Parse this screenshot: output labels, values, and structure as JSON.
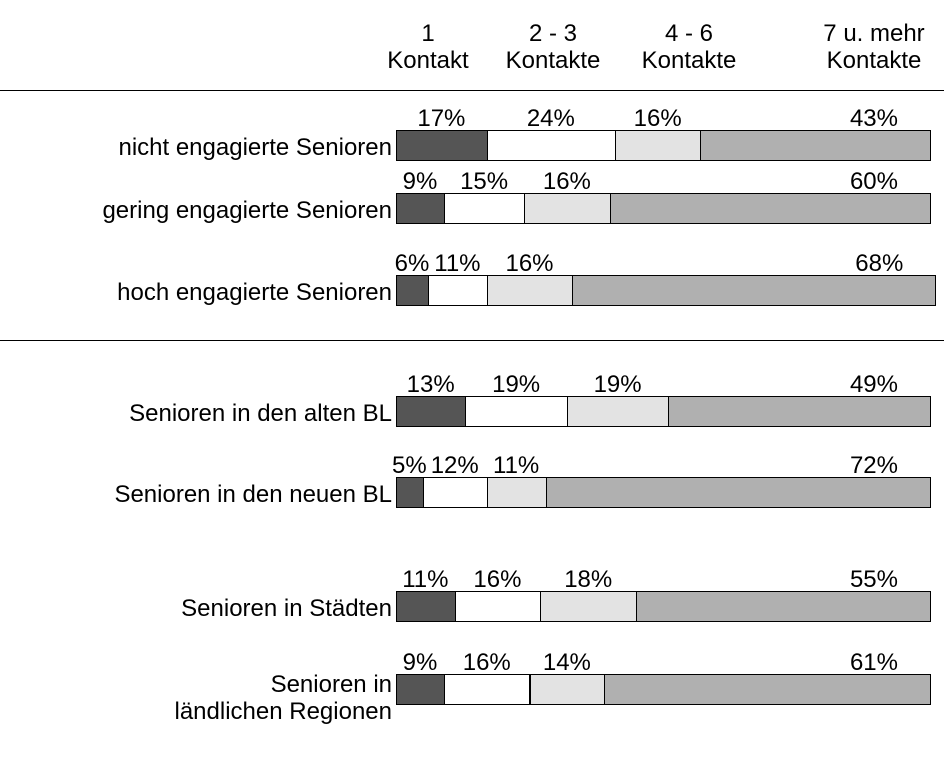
{
  "chart_data": {
    "type": "stacked-bar-horizontal",
    "categories": [
      "nicht engagierte Senioren",
      "gering engagierte Senioren",
      "hoch engagierte Senioren",
      "Senioren in den alten BL",
      "Senioren in den neuen BL",
      "Senioren in Städten",
      "Senioren in\nländlichen Regionen"
    ],
    "series": [
      {
        "name": "1\nKontakt",
        "color": "#555555",
        "values": [
          17,
          9,
          6,
          13,
          5,
          11,
          9
        ],
        "value_labels": [
          "17%",
          "9%",
          "6%",
          "13%",
          "5%",
          "11%",
          "9%"
        ]
      },
      {
        "name": "2 - 3\nKontakte",
        "color": "#ffffff",
        "values": [
          24,
          15,
          11,
          19,
          12,
          16,
          16
        ],
        "value_labels": [
          "24%",
          "15%",
          "11%",
          "19%",
          "12%",
          "16%",
          "16%"
        ]
      },
      {
        "name": "4 - 6\nKontakte",
        "color": "#e3e3e3",
        "values": [
          16,
          16,
          16,
          19,
          11,
          18,
          14
        ],
        "value_labels": [
          "16%",
          "16%",
          "16%",
          "19%",
          "11%",
          "18%",
          "14%"
        ]
      },
      {
        "name": "7 u. mehr\nKontakte",
        "color": "#b0b0b0",
        "values": [
          43,
          60,
          68,
          49,
          72,
          55,
          61
        ],
        "value_labels": [
          "43%",
          "60%",
          "68%",
          "49%",
          "72%",
          "55%",
          "61%"
        ]
      }
    ]
  }
}
